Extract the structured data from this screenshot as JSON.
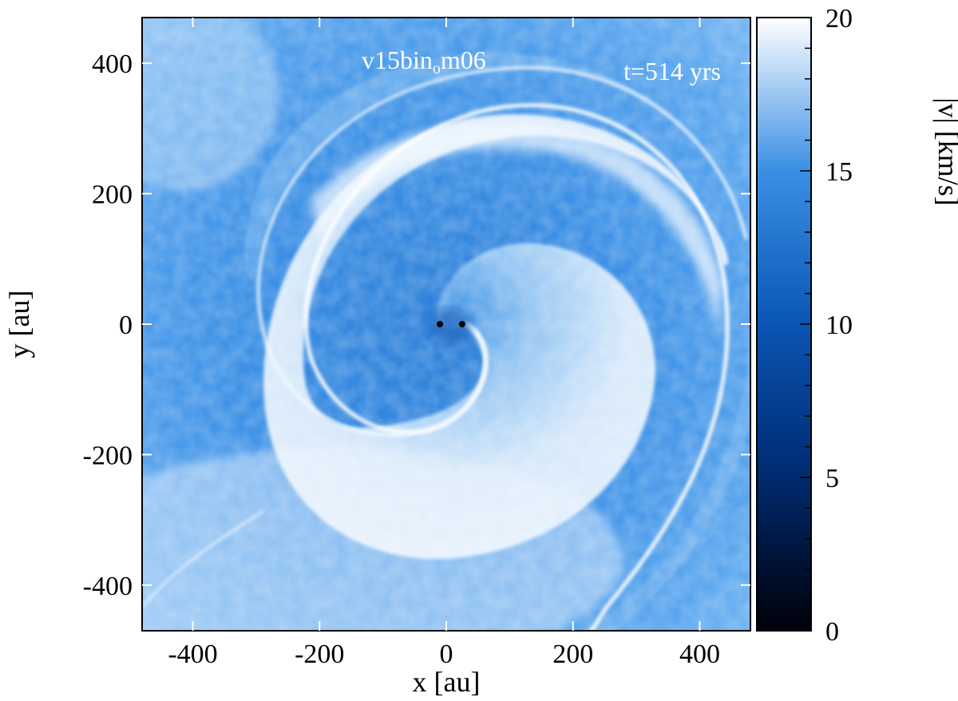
{
  "chart_data": {
    "type": "heatmap",
    "title": "",
    "xlabel": "x [au]",
    "ylabel": "y [au]",
    "xlim": [
      -480,
      480
    ],
    "ylim": [
      -470,
      470
    ],
    "x_ticks": [
      -400,
      -200,
      0,
      200,
      400
    ],
    "y_ticks": [
      400,
      200,
      0,
      -200,
      -400
    ],
    "x_tick_labels": [
      "-400",
      "-200",
      "0",
      "200",
      "400"
    ],
    "y_tick_labels": [
      "400",
      "200",
      "0",
      "-200",
      "-400"
    ],
    "colorbar": {
      "label": "|v| [km/s]",
      "range": [
        0,
        20
      ],
      "ticks": [
        20,
        15,
        10,
        5,
        0
      ],
      "tick_labels": [
        "20",
        "15",
        "10",
        "5",
        "0"
      ],
      "colormap": [
        "#000008",
        "#003a8c",
        "#1a73d9",
        "#6fb0ef",
        "#ffffff"
      ]
    },
    "annotations": {
      "model": "v15bin",
      "model_sub": "o",
      "model_suffix": "m06",
      "time": "t=514 yrs"
    },
    "stars": [
      {
        "x": -10,
        "y": 0
      },
      {
        "x": 25,
        "y": 0
      }
    ],
    "colors": {
      "background_field": "#3f93e6",
      "inner_shell": "#e9f4fe",
      "shock_front": "#ffffff"
    }
  }
}
